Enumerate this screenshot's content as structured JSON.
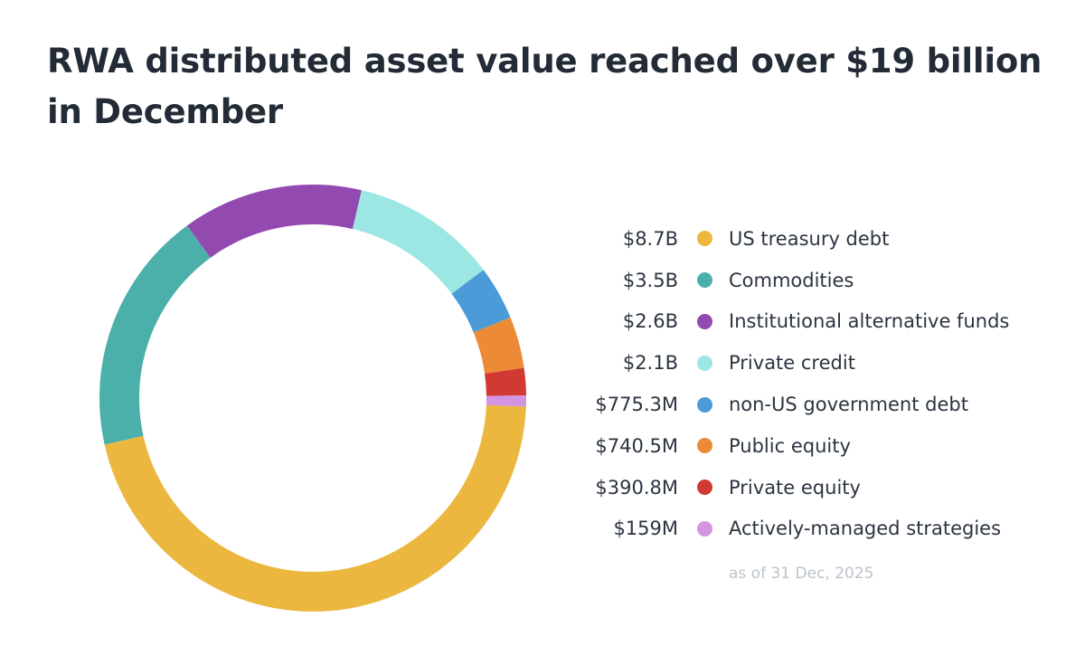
{
  "chart_data": {
    "type": "pie",
    "title": "RWA distributed asset value reached over $19 billion in December",
    "note": "as of 31 Dec, 2025",
    "legend_position": "right",
    "slices": [
      {
        "name": "US treasury debt",
        "value": 8700,
        "value_label": "$8.7B",
        "color": "#ebb73f"
      },
      {
        "name": "Commodities",
        "value": 3500,
        "value_label": "$3.5B",
        "color": "#4cb0aa"
      },
      {
        "name": "Institutional alternative funds",
        "value": 2600,
        "value_label": "$2.6B",
        "color": "#934ab0"
      },
      {
        "name": "Private credit",
        "value": 2100,
        "value_label": "$2.1B",
        "color": "#9ce6e3"
      },
      {
        "name": "non-US government debt",
        "value": 775.3,
        "value_label": "$775.3M",
        "color": "#4c9bd9"
      },
      {
        "name": "Public equity",
        "value": 740.5,
        "value_label": "$740.5M",
        "color": "#ec8a36"
      },
      {
        "name": "Private equity",
        "value": 390.8,
        "value_label": "$390.8M",
        "color": "#d13a32"
      },
      {
        "name": "Actively-managed strategies",
        "value": 159,
        "value_label": "$159M",
        "color": "#d495e0"
      }
    ]
  }
}
